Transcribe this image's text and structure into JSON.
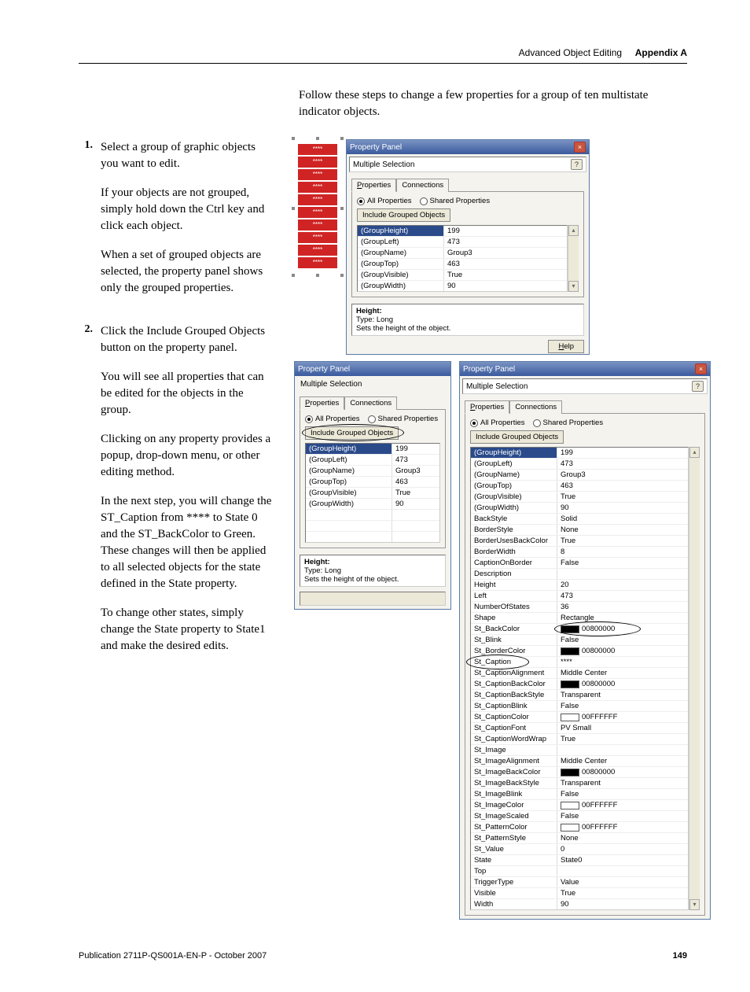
{
  "header": {
    "left": "Advanced Object Editing",
    "right": "Appendix A"
  },
  "intro": "Follow these steps to change a few properties for a group of ten multistate indicator objects.",
  "steps": [
    {
      "num": "1.",
      "paras": [
        "Select a group of graphic objects you want to edit.",
        "If your objects are not grouped, simply hold down the Ctrl key and click each object.",
        "When a set of grouped objects are selected, the property panel shows only the grouped properties."
      ]
    },
    {
      "num": "2.",
      "paras": [
        "Click the Include Grouped Objects button on the property panel.",
        "You will see all properties that can be edited for the objects in the group.",
        "Clicking on any property provides a popup, drop-down menu, or other editing method.",
        "In the next step, you will change the ST_Caption from **** to State 0 and the ST_BackColor to Green. These changes will then be applied to all selected objects for the state defined in the State property.",
        "To change other states, simply change the State property to State1 and make the desired edits."
      ]
    }
  ],
  "panel": {
    "title": "Property Panel",
    "selection": "Multiple Selection",
    "tab_properties": "Properties",
    "tab_connections": "Connections",
    "radio_all": "All Properties",
    "radio_shared": "Shared Properties",
    "include_btn": "Include Grouped Objects",
    "help_btn": "Help",
    "desc_title": "Height:",
    "desc_type": "Type: Long",
    "desc_text": "Sets the height of the object.",
    "short_props": [
      [
        "(GroupHeight)",
        "199"
      ],
      [
        "(GroupLeft)",
        "473"
      ],
      [
        "(GroupName)",
        "Group3"
      ],
      [
        "(GroupTop)",
        "463"
      ],
      [
        "(GroupVisible)",
        "True"
      ],
      [
        "(GroupWidth)",
        "90"
      ]
    ],
    "long_props": [
      {
        "l": "(GroupHeight)",
        "r": "199",
        "sel": true
      },
      {
        "l": "(GroupLeft)",
        "r": "473"
      },
      {
        "l": "(GroupName)",
        "r": "Group3"
      },
      {
        "l": "(GroupTop)",
        "r": "463"
      },
      {
        "l": "(GroupVisible)",
        "r": "True"
      },
      {
        "l": "(GroupWidth)",
        "r": "90"
      },
      {
        "l": "BackStyle",
        "r": "Solid"
      },
      {
        "l": "BorderStyle",
        "r": "None"
      },
      {
        "l": "BorderUsesBackColor",
        "r": "True"
      },
      {
        "l": "BorderWidth",
        "r": "8"
      },
      {
        "l": "CaptionOnBorder",
        "r": "False"
      },
      {
        "l": "Description",
        "r": ""
      },
      {
        "l": "Height",
        "r": "20"
      },
      {
        "l": "Left",
        "r": "473"
      },
      {
        "l": "NumberOfStates",
        "r": "36"
      },
      {
        "l": "Shape",
        "r": "Rectangle"
      },
      {
        "l": "St_BackColor",
        "r": "00800000",
        "swatch": "black",
        "circ": true
      },
      {
        "l": "St_Blink",
        "r": "False"
      },
      {
        "l": "St_BorderColor",
        "r": "00800000",
        "swatch": "black"
      },
      {
        "l": "St_Caption",
        "r": "****",
        "circL": true
      },
      {
        "l": "St_CaptionAlignment",
        "r": "Middle Center"
      },
      {
        "l": "St_CaptionBackColor",
        "r": "00800000",
        "swatch": "black"
      },
      {
        "l": "St_CaptionBackStyle",
        "r": "Transparent"
      },
      {
        "l": "St_CaptionBlink",
        "r": "False"
      },
      {
        "l": "St_CaptionColor",
        "r": "00FFFFFF",
        "swatch": "white"
      },
      {
        "l": "St_CaptionFont",
        "r": "PV Small"
      },
      {
        "l": "St_CaptionWordWrap",
        "r": "True"
      },
      {
        "l": "St_Image",
        "r": ""
      },
      {
        "l": "St_ImageAlignment",
        "r": "Middle Center"
      },
      {
        "l": "St_ImageBackColor",
        "r": "00800000",
        "swatch": "black"
      },
      {
        "l": "St_ImageBackStyle",
        "r": "Transparent"
      },
      {
        "l": "St_ImageBlink",
        "r": "False"
      },
      {
        "l": "St_ImageColor",
        "r": "00FFFFFF",
        "swatch": "white"
      },
      {
        "l": "St_ImageScaled",
        "r": "False"
      },
      {
        "l": "St_PatternColor",
        "r": "00FFFFFF",
        "swatch": "white"
      },
      {
        "l": "St_PatternStyle",
        "r": "None"
      },
      {
        "l": "St_Value",
        "r": "0"
      },
      {
        "l": "State",
        "r": "State0"
      },
      {
        "l": "Top",
        "r": ""
      },
      {
        "l": "TriggerType",
        "r": "Value"
      },
      {
        "l": "Visible",
        "r": "True"
      },
      {
        "l": "Width",
        "r": "90"
      }
    ]
  },
  "ind_label": "****",
  "footer": {
    "pub": "Publication 2711P-QS001A-EN-P - October 2007",
    "page": "149"
  }
}
